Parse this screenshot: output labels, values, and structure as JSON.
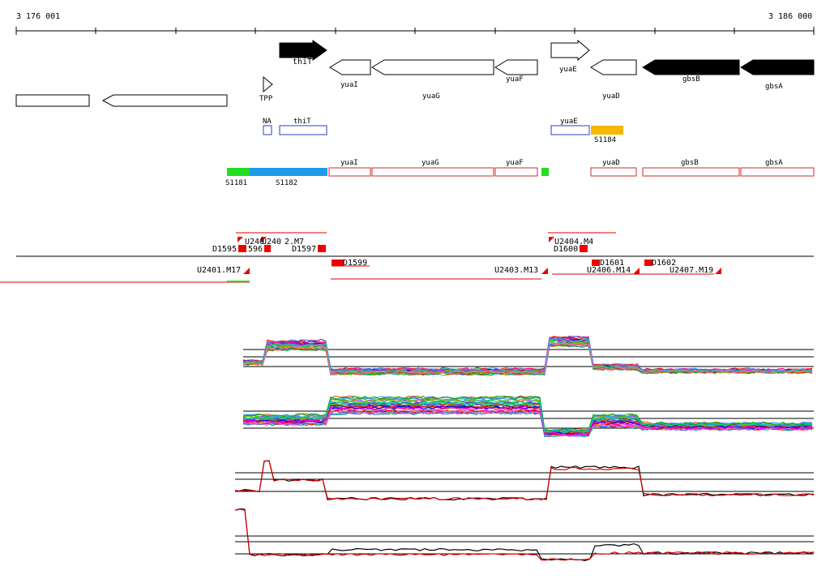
{
  "ruler": {
    "start_label": "3 176 001",
    "end_label": "3 186 000"
  },
  "genes": {
    "thiT": "thiT",
    "TPP": "TPP",
    "yuaI": "yuaI",
    "yuaG": "yuaG",
    "yuaF": "yuaF",
    "yuaE": "yuaE",
    "yuaD": "yuaD",
    "gbsB": "gbsB",
    "gbsA": "gbsA"
  },
  "blue_track": {
    "NA": "NA",
    "thiT": "thiT",
    "yuaE": "yuaE",
    "S1184": "S1184"
  },
  "segments": {
    "S1181": "S1181",
    "S1182": "S1182",
    "yuaI": "yuaI",
    "yuaG": "yuaG",
    "yuaF": "yuaF",
    "yuaD": "yuaD",
    "gbsB": "gbsB",
    "gbsA": "gbsA"
  },
  "features": {
    "D1595": "D1595",
    "U2400": "U240",
    "U2402": "U240",
    "M7": "2.M7",
    "s596": "596",
    "D1597": "D1597",
    "D1599": "D1599",
    "U2401": "U2401.M17",
    "U2403": "U2403.M13",
    "U2404": "U2404.M4",
    "D1600": "D1600",
    "D1601": "D1601",
    "U2406": "U2406.M14",
    "D1602": "D1602",
    "U2407": "U2407.M19"
  },
  "colors": {
    "blue_gene": "#2a3fbf",
    "red_segment": "#d42a2a",
    "green": "#22dd22",
    "sky": "#1e9be8",
    "orange": "#f5b800",
    "red": "#ee0000"
  }
}
